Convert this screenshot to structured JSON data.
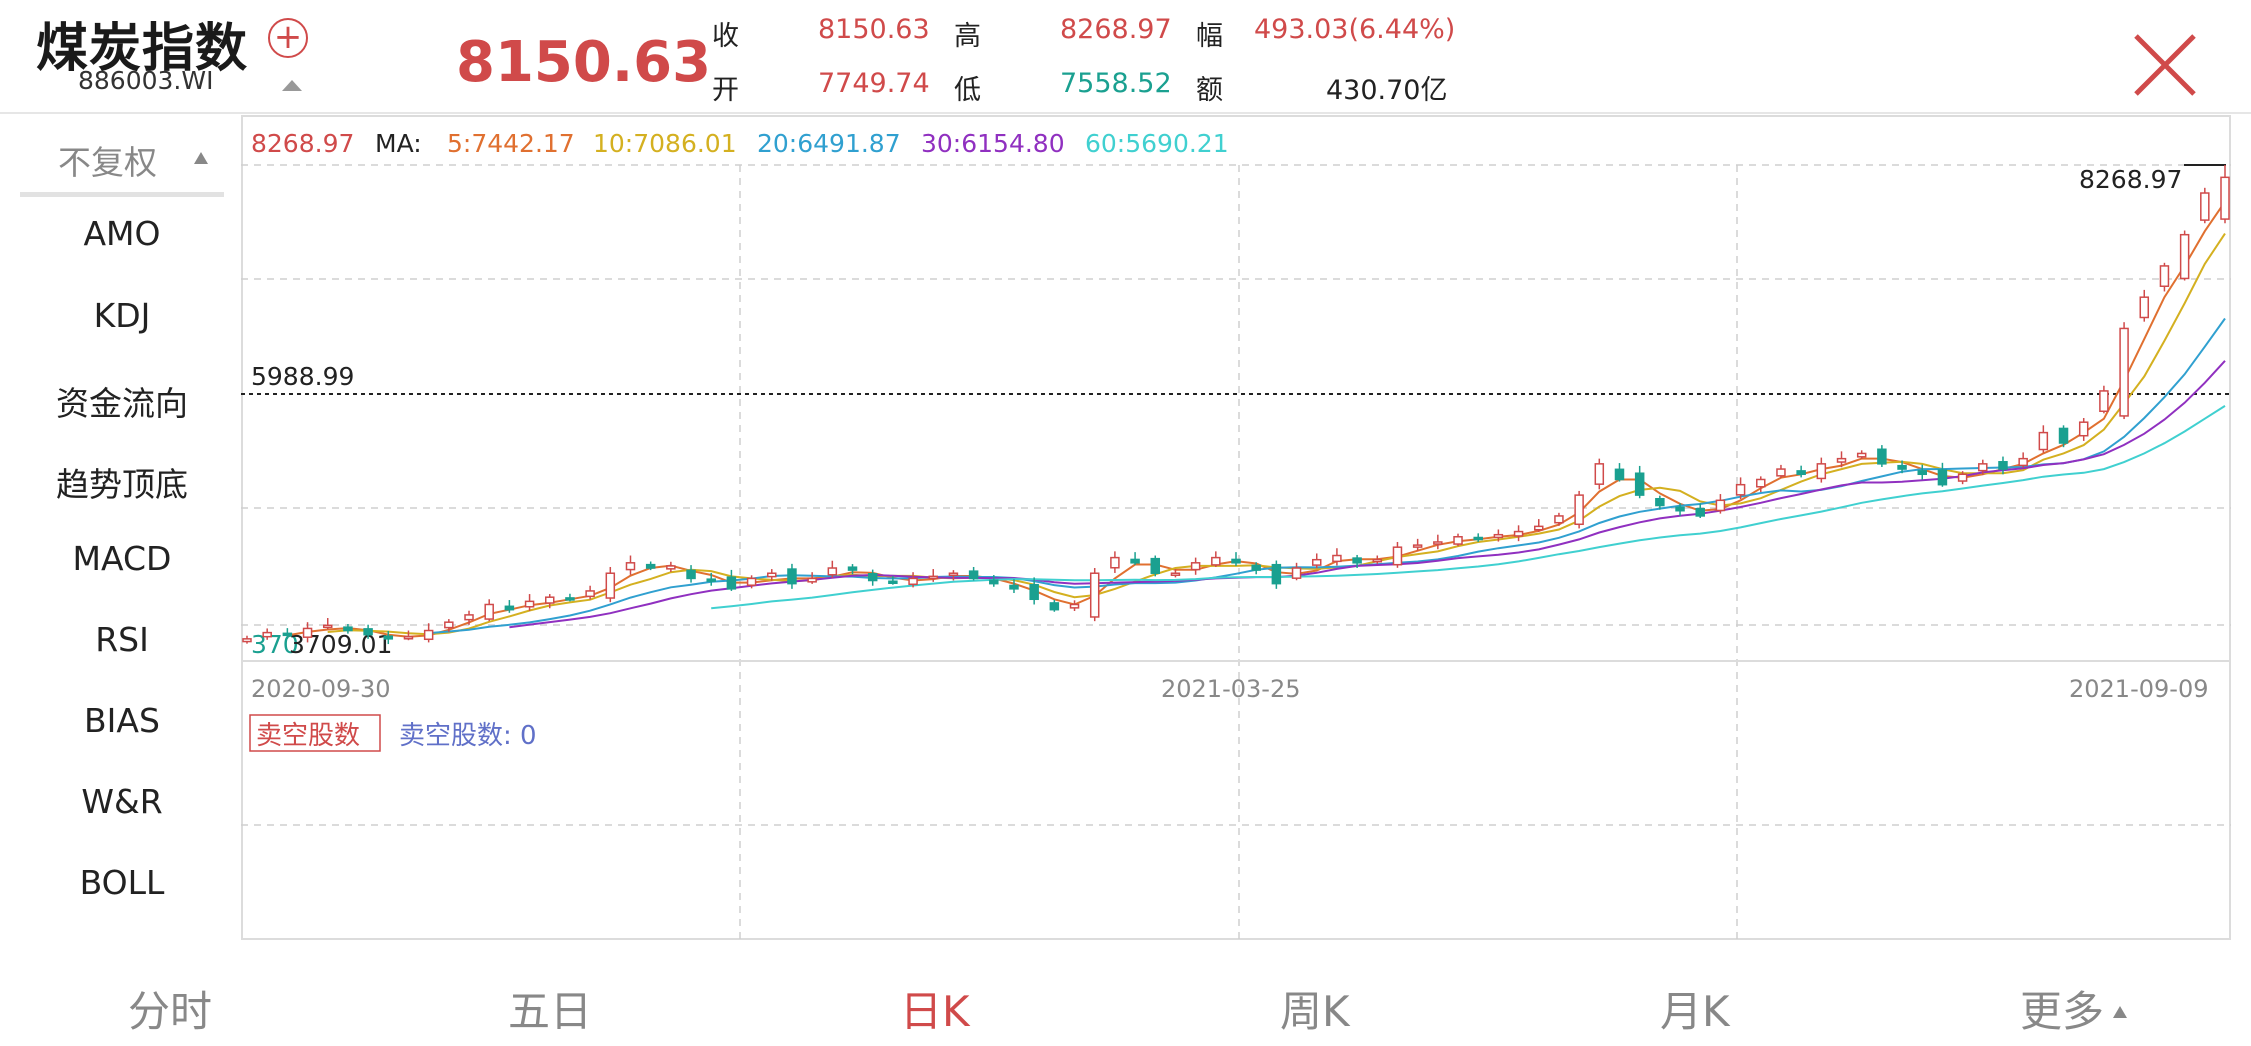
{
  "header": {
    "title": "煤炭指数",
    "code": "886003.WI",
    "price": "8150.63",
    "quote": {
      "close_label": "收",
      "close": "8150.63",
      "high_label": "高",
      "high": "8268.97",
      "change_label": "幅",
      "change": "493.03(6.44%)",
      "open_label": "开",
      "open": "7749.74",
      "low_label": "低",
      "low": "7558.52",
      "amount_label": "额",
      "amount": "430.70亿"
    }
  },
  "sidebar": {
    "adjust": "不复权",
    "items": [
      "AMO",
      "KDJ",
      "资金流向",
      "趋势顶底",
      "MACD",
      "RSI",
      "BIAS",
      "W&R",
      "BOLL"
    ]
  },
  "ma_legend": {
    "value": "8268.97",
    "prefix": "MA:",
    "ma5": "5:7442.17",
    "ma10": "10:7086.01",
    "ma20": "20:6491.87",
    "ma30": "30:6154.80",
    "ma60": "60:5690.21"
  },
  "colors": {
    "up": "#d04a4a",
    "down": "#1aa090",
    "ma5": "#e07030",
    "ma10": "#d4b020",
    "ma20": "#30a0d0",
    "ma30": "#9030c0",
    "ma60": "#40d0d0"
  },
  "price_marks": {
    "high_label": "8268.97",
    "ref_line_label": "5988.99",
    "low_label": "3709.01",
    "low_label_overlap": "370"
  },
  "x_dates": [
    "2020-09-30",
    "2021-03-25",
    "2021-09-09"
  ],
  "sub_indicator": {
    "button": "卖空股数",
    "legend": "卖空股数: 0"
  },
  "tabs": [
    "分时",
    "五日",
    "日K",
    "周K",
    "月K",
    "更多"
  ],
  "active_tab": "日K",
  "chart_data": {
    "type": "candlestick",
    "title": "煤炭指数",
    "x_range": [
      "2020-09-30",
      "2021-09-09"
    ],
    "y_range": [
      3709.01,
      8268.97
    ],
    "reference_line": 5988.99,
    "closes": [
      3720,
      3780,
      3760,
      3820,
      3850,
      3800,
      3760,
      3720,
      3740,
      3800,
      3880,
      3950,
      4050,
      4000,
      4080,
      4120,
      4100,
      4180,
      4350,
      4450,
      4400,
      4420,
      4300,
      4280,
      4200,
      4300,
      4350,
      4250,
      4300,
      4400,
      4380,
      4280,
      4260,
      4300,
      4320,
      4350,
      4300,
      4250,
      4200,
      4100,
      4000,
      4050,
      4350,
      4500,
      4450,
      4350,
      4350,
      4450,
      4500,
      4450,
      4380,
      4250,
      4400,
      4480,
      4520,
      4450,
      4480,
      4600,
      4620,
      4650,
      4700,
      4680,
      4720,
      4750,
      4800,
      4900,
      5100,
      5400,
      5250,
      5100,
      5000,
      4950,
      4900,
      5050,
      5200,
      5250,
      5350,
      5300,
      5400,
      5450,
      5500,
      5400,
      5350,
      5300,
      5200,
      5300,
      5400,
      5350,
      5450,
      5700,
      5600,
      5800,
      6100,
      6700,
      7000,
      7300,
      7600,
      8000,
      8150.63
    ],
    "ma": {
      "MA5": 7442.17,
      "MA10": 7086.01,
      "MA20": 6491.87,
      "MA30": 6154.8,
      "MA60": 5690.21
    },
    "sub_indicator": {
      "name": "卖空股数",
      "value": 0
    }
  }
}
